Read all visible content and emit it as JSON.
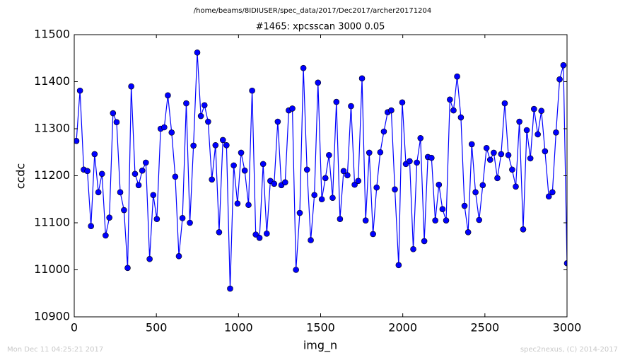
{
  "chart_data": {
    "type": "line",
    "suptitle": "/home/beams/8IDIUSER/spec_data/2017/Dec2017/archer20171204",
    "title": "#1465: xpcsscan 3000 0.05",
    "xlabel": "img_n",
    "ylabel": "ccdc",
    "footer_left": "Mon Dec 11 04:25:21 2017",
    "footer_right": "spec2nexus, (C) 2014-2017",
    "xlim": [
      0,
      3000
    ],
    "xticks": [
      0,
      500,
      1000,
      1500,
      2000,
      2500,
      3000
    ],
    "ylim": [
      10900,
      11500
    ],
    "yticks": [
      10900,
      11000,
      11100,
      11200,
      11300,
      11400,
      11500
    ],
    "x": [
      13,
      35,
      58,
      80,
      102,
      124,
      147,
      169,
      191,
      214,
      236,
      258,
      280,
      303,
      325,
      347,
      370,
      392,
      414,
      436,
      459,
      481,
      503,
      526,
      548,
      570,
      593,
      615,
      637,
      659,
      682,
      704,
      726,
      749,
      771,
      793,
      815,
      838,
      860,
      882,
      905,
      927,
      949,
      971,
      994,
      1016,
      1038,
      1061,
      1083,
      1105,
      1128,
      1150,
      1172,
      1194,
      1217,
      1239,
      1261,
      1284,
      1306,
      1328,
      1350,
      1373,
      1395,
      1417,
      1440,
      1462,
      1484,
      1507,
      1529,
      1551,
      1573,
      1596,
      1618,
      1640,
      1663,
      1685,
      1707,
      1729,
      1752,
      1774,
      1796,
      1819,
      1841,
      1863,
      1885,
      1908,
      1930,
      1952,
      1975,
      1997,
      2019,
      2042,
      2064,
      2086,
      2108,
      2131,
      2153,
      2175,
      2198,
      2220,
      2242,
      2264,
      2287,
      2309,
      2331,
      2354,
      2376,
      2398,
      2420,
      2443,
      2465,
      2487,
      2510,
      2532,
      2554,
      2576,
      2599,
      2621,
      2643,
      2666,
      2688,
      2710,
      2733,
      2755,
      2777,
      2799,
      2822,
      2844,
      2866,
      2889,
      2911,
      2933,
      2955,
      2978,
      3000
    ],
    "series": [
      {
        "name": "ccdc",
        "color": "#0000ff",
        "values": [
          11274,
          11381,
          11213,
          11210,
          11093,
          11246,
          11165,
          11204,
          11073,
          11111,
          11333,
          11314,
          11165,
          11127,
          11004,
          11390,
          11204,
          11180,
          11211,
          11228,
          11023,
          11159,
          11108,
          11300,
          11303,
          11371,
          11292,
          11198,
          11029,
          11110,
          11354,
          11100,
          11264,
          11462,
          11327,
          11350,
          11315,
          11192,
          11265,
          11080,
          11276,
          11265,
          10960,
          11222,
          11141,
          11249,
          11211,
          11138,
          11381,
          11075,
          11068,
          11225,
          11077,
          11189,
          11183,
          11315,
          11180,
          11186,
          11339,
          11343,
          11000,
          11121,
          11429,
          11213,
          11063,
          11159,
          11398,
          11150,
          11195,
          11244,
          11153,
          11357,
          11108,
          11210,
          11201,
          11348,
          11181,
          11189,
          11407,
          11105,
          11249,
          11076,
          11175,
          11250,
          11294,
          11335,
          11339,
          11171,
          11010,
          11356,
          11225,
          11231,
          11044,
          11228,
          11280,
          11061,
          11240,
          11238,
          11105,
          11181,
          11129,
          11105,
          11362,
          11339,
          11411,
          11324,
          11136,
          11080,
          11267,
          11165,
          11106,
          11180,
          11259,
          11234,
          11249,
          11195,
          11246,
          11354,
          11244,
          11213,
          11177,
          11315,
          11086,
          11297,
          11237,
          11342,
          11288,
          11338,
          11252,
          11156,
          11165,
          11292,
          11405,
          11435,
          11014
        ]
      }
    ]
  }
}
